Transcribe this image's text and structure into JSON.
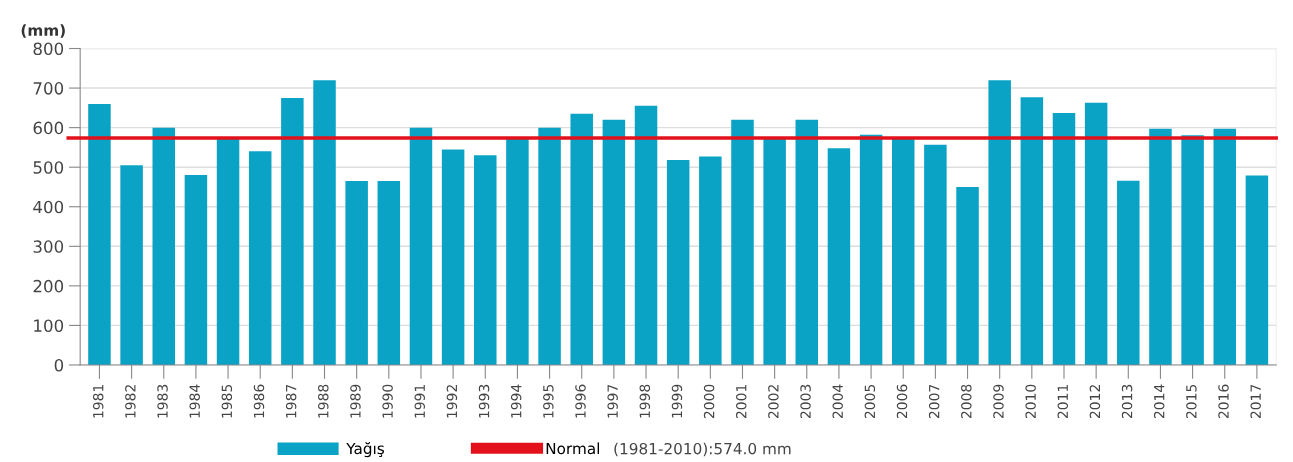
{
  "chart_data": {
    "type": "bar",
    "ylabel": "(mm)",
    "categories": [
      "1981",
      "1982",
      "1983",
      "1984",
      "1985",
      "1986",
      "1987",
      "1988",
      "1989",
      "1990",
      "1991",
      "1992",
      "1993",
      "1994",
      "1995",
      "1996",
      "1997",
      "1998",
      "1999",
      "2000",
      "2001",
      "2002",
      "2003",
      "2004",
      "2005",
      "2006",
      "2007",
      "2008",
      "2009",
      "2010",
      "2011",
      "2012",
      "2013",
      "2014",
      "2015",
      "2016",
      "2017"
    ],
    "series": [
      {
        "name": "Yağış",
        "color": "#0aa3c6",
        "values": [
          660,
          505,
          600,
          480,
          575,
          540,
          675,
          720,
          465,
          465,
          600,
          545,
          530,
          572,
          600,
          635,
          620,
          655,
          518,
          527,
          620,
          573,
          620,
          548,
          582,
          573,
          557,
          450,
          720,
          677,
          637,
          663,
          466,
          597,
          581,
          597,
          479
        ]
      }
    ],
    "ylim": [
      0,
      800
    ],
    "yticks": [
      0,
      100,
      200,
      300,
      400,
      500,
      600,
      700,
      800
    ],
    "grid": "y",
    "legend": "bottom",
    "ref_lines": [
      {
        "axis": "y",
        "value": 574.0,
        "label": "Normal",
        "color": "#e3111b"
      }
    ],
    "annotations": [
      "(1981-2010):574.0 mm"
    ]
  }
}
